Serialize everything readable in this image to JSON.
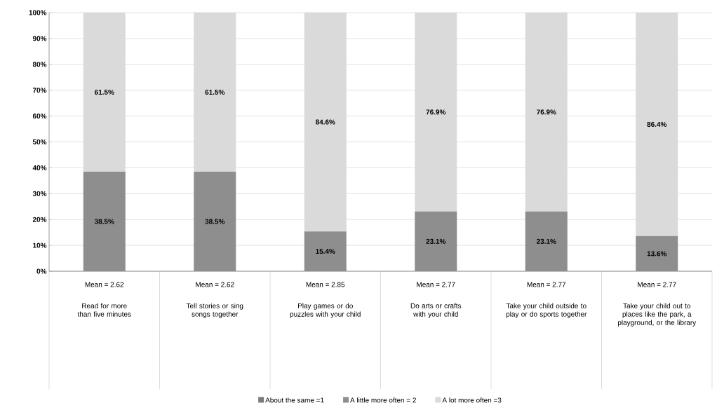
{
  "chart_data": {
    "type": "bar",
    "stacked": true,
    "categories": [
      "Read for more than five minutes",
      "Tell stories or sing songs together",
      "Play games or do puzzles with your child",
      "Do arts or crafts with your child",
      "Take your child outside to play or do sports together",
      "Take your child out to places like the park, a playground, or the library"
    ],
    "series": [
      {
        "name": "About the same =1",
        "color": "#7a7a7a",
        "values": [
          0,
          0,
          0,
          0,
          0,
          0
        ]
      },
      {
        "name": "A little more often = 2",
        "color": "#8e8e8e",
        "values": [
          38.5,
          38.5,
          15.4,
          23.1,
          23.1,
          13.6
        ],
        "value_labels": [
          "38.5%",
          "38.5%",
          "15.4%",
          "23.1%",
          "23.1%",
          "13.6%"
        ]
      },
      {
        "name": "A lot more often =3",
        "color": "#dadada",
        "values": [
          61.5,
          61.5,
          84.6,
          76.9,
          76.9,
          86.4
        ],
        "value_labels": [
          "61.5%",
          "61.5%",
          "84.6%",
          "76.9%",
          "76.9%",
          "86.4%"
        ]
      }
    ],
    "ylim": [
      0,
      100
    ],
    "yticks": [
      {
        "value": 0,
        "label": "0%"
      },
      {
        "value": 10,
        "label": "10%"
      },
      {
        "value": 20,
        "label": "20%"
      },
      {
        "value": 30,
        "label": "30%"
      },
      {
        "value": 40,
        "label": "40%"
      },
      {
        "value": 50,
        "label": "50%"
      },
      {
        "value": 60,
        "label": "60%"
      },
      {
        "value": 70,
        "label": "70%"
      },
      {
        "value": 80,
        "label": "80%"
      },
      {
        "value": 90,
        "label": "90%"
      },
      {
        "value": 100,
        "label": "100%"
      }
    ],
    "grid": "y",
    "legend": "bottom",
    "annotations": [
      "Mean = 2.62",
      "Mean = 2.62",
      "Mean = 2.85",
      "Mean = 2.77",
      "Mean = 2.77",
      "Mean = 2.77"
    ]
  }
}
